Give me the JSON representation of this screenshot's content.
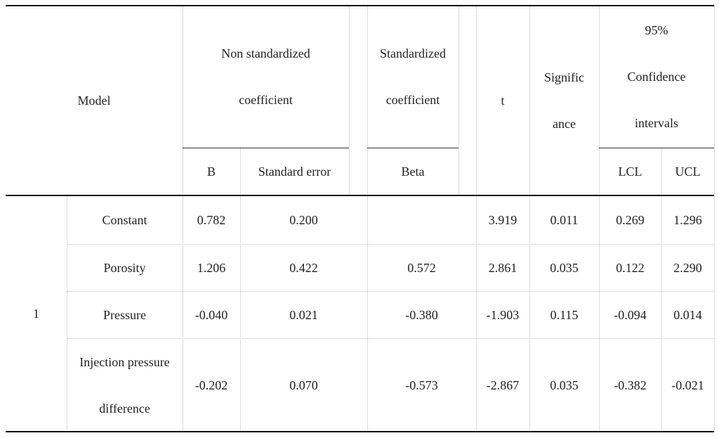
{
  "table": {
    "header": {
      "model": "Model",
      "groups": [
        {
          "label": "Non standardized coefficient",
          "columns": [
            "B",
            "Standard error"
          ]
        },
        {
          "label": "Standardized coefficient",
          "columns": [
            "Beta"
          ]
        },
        {
          "label": "t"
        },
        {
          "label": "Significance"
        },
        {
          "label": "95% Confidence intervals",
          "columns": [
            "LCL",
            "UCL"
          ]
        }
      ]
    },
    "model_number": "1",
    "rows": [
      {
        "name": "Constant",
        "values": [
          "0.782",
          "0.200",
          null,
          "3.919",
          "0.011",
          "0.269",
          "1.296"
        ]
      },
      {
        "name": "Porosity",
        "values": [
          "1.206",
          "0.422",
          "0.572",
          "2.861",
          "0.035",
          "0.122",
          "2.290"
        ]
      },
      {
        "name": "Pressure",
        "values": [
          "-0.040",
          "0.021",
          "-0.380",
          "-1.903",
          "0.115",
          "-0.094",
          "0.014"
        ]
      },
      {
        "name": "Injection pressure difference",
        "values": [
          "-0.202",
          "0.070",
          "-0.573",
          "-2.867",
          "0.035",
          "-0.382",
          "-0.021"
        ]
      }
    ]
  }
}
